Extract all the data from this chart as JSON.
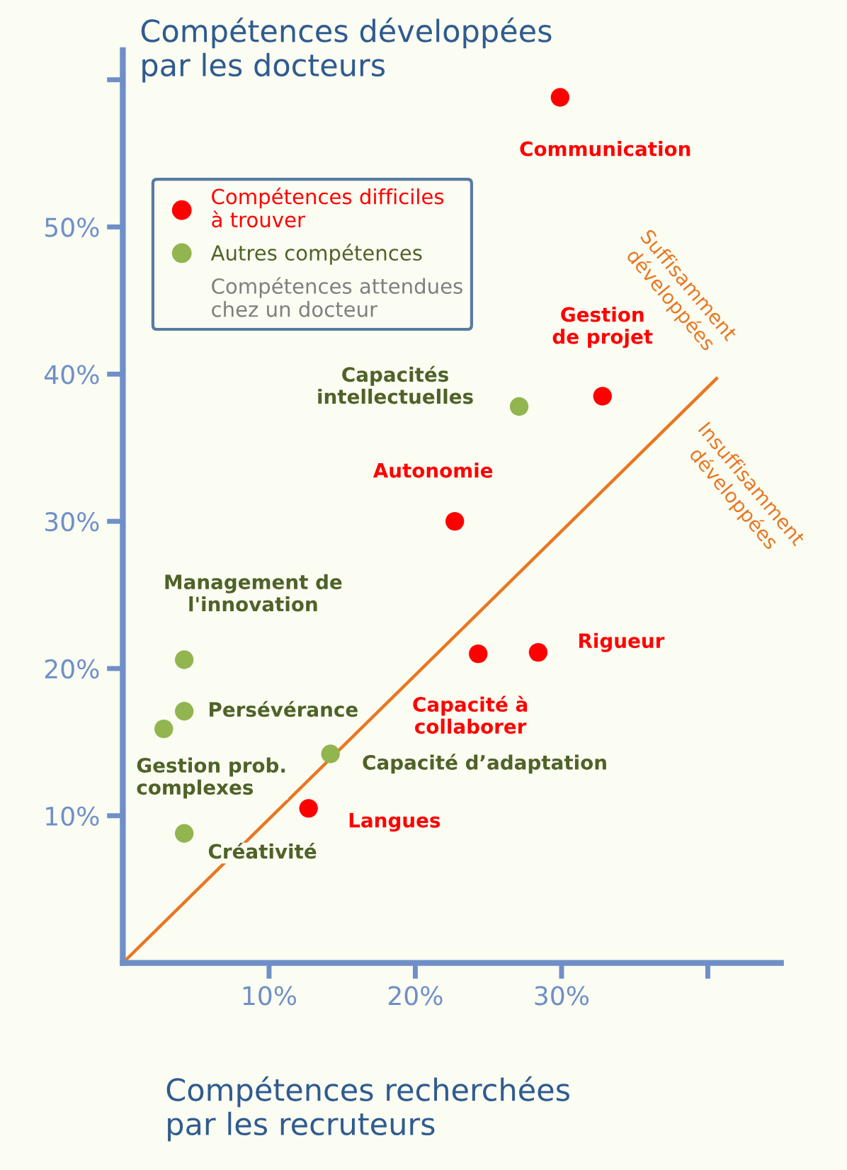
{
  "chart_data": {
    "type": "scatter",
    "xlabel": "Compétences recherchées\npar les recruteurs",
    "ylabel": "Compétences développées\npar les docteurs",
    "xlim": [
      0,
      45
    ],
    "ylim": [
      0,
      62
    ],
    "xticks": [
      {
        "value": 10,
        "label": "10%"
      },
      {
        "value": 20,
        "label": "20%"
      },
      {
        "value": 30,
        "label": "30%"
      },
      {
        "value": 40,
        "label": null
      }
    ],
    "yticks": [
      {
        "value": 10,
        "label": "10%"
      },
      {
        "value": 20,
        "label": "20%"
      },
      {
        "value": 30,
        "label": "30%"
      },
      {
        "value": 40,
        "label": "40%"
      },
      {
        "value": 50,
        "label": "50%"
      },
      {
        "value": 60,
        "label": null
      }
    ],
    "grid": false,
    "legend": "top left",
    "marker": "circle",
    "series": [
      {
        "name": "Compétences difficiles\nà trouver",
        "color": "#ff0000",
        "x": [
          29.9,
          32.8,
          22.7,
          28.4,
          24.3,
          12.7
        ],
        "values": [
          58.8,
          38.5,
          30.0,
          21.1,
          21.0,
          10.5
        ],
        "value_labels": [
          "Communication",
          "Gestion\nde projet",
          "Autonomie",
          "Rigueur",
          "Capacité à\ncollaborer",
          "Langues"
        ]
      },
      {
        "name": "Autres compétences",
        "color": "#92b550",
        "x": [
          27.1,
          4.2,
          4.2,
          2.8,
          14.2,
          4.2
        ],
        "values": [
          37.8,
          20.6,
          17.1,
          15.9,
          14.2,
          8.8
        ],
        "value_labels": [
          "Capacités\nintellectuelles",
          "Management de\nl'innovation",
          "Persévérance",
          "Gestion prob.\ncomplexes",
          "Capacité d’adaptation",
          "Créativité"
        ]
      },
      {
        "type": "line",
        "color": "#e87722",
        "x": [
          0,
          40.6
        ],
        "values": [
          0,
          39.7
        ],
        "line_style": "solid",
        "marker": "none"
      }
    ],
    "annotations": [
      "Compétences attendues\nchez un docteur",
      "Suffisamment\ndéveloppées",
      "Insuffisamment\ndéveloppées"
    ]
  }
}
